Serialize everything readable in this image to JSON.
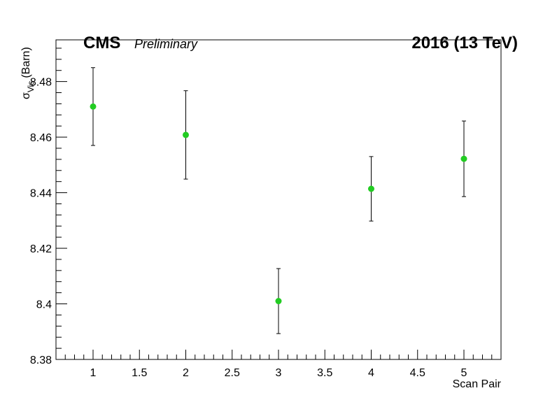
{
  "chart_data": {
    "type": "scatter",
    "xlabel": "Scan Pair",
    "ylabel_symbol": "σ",
    "ylabel_subscript": "Vis",
    "ylabel_unit": "(Barn)",
    "xlim": [
      0.6,
      5.4
    ],
    "ylim": [
      8.38,
      8.495
    ],
    "x_ticks": [
      1,
      1.5,
      2,
      2.5,
      3,
      3.5,
      4,
      4.5,
      5
    ],
    "x_tick_labels": [
      "1",
      "1.5",
      "2",
      "2.5",
      "3",
      "3.5",
      "4",
      "4.5",
      "5"
    ],
    "y_ticks": [
      8.38,
      8.4,
      8.42,
      8.44,
      8.46,
      8.48
    ],
    "y_tick_labels": [
      "8.38",
      "8.4",
      "8.42",
      "8.44",
      "8.46",
      "8.48"
    ],
    "grid": false,
    "marker_color": "#22cc22",
    "series": [
      {
        "points": [
          {
            "x": 1,
            "y": 8.471,
            "err": 0.014
          },
          {
            "x": 2,
            "y": 8.4608,
            "err": 0.0159
          },
          {
            "x": 3,
            "y": 8.401,
            "err": 0.0117
          },
          {
            "x": 4,
            "y": 8.4414,
            "err": 0.0116
          },
          {
            "x": 5,
            "y": 8.4522,
            "err": 0.0136
          }
        ]
      }
    ],
    "annotations": {
      "experiment": "CMS",
      "status": "Preliminary",
      "energy": "2016  (13 TeV)"
    }
  }
}
